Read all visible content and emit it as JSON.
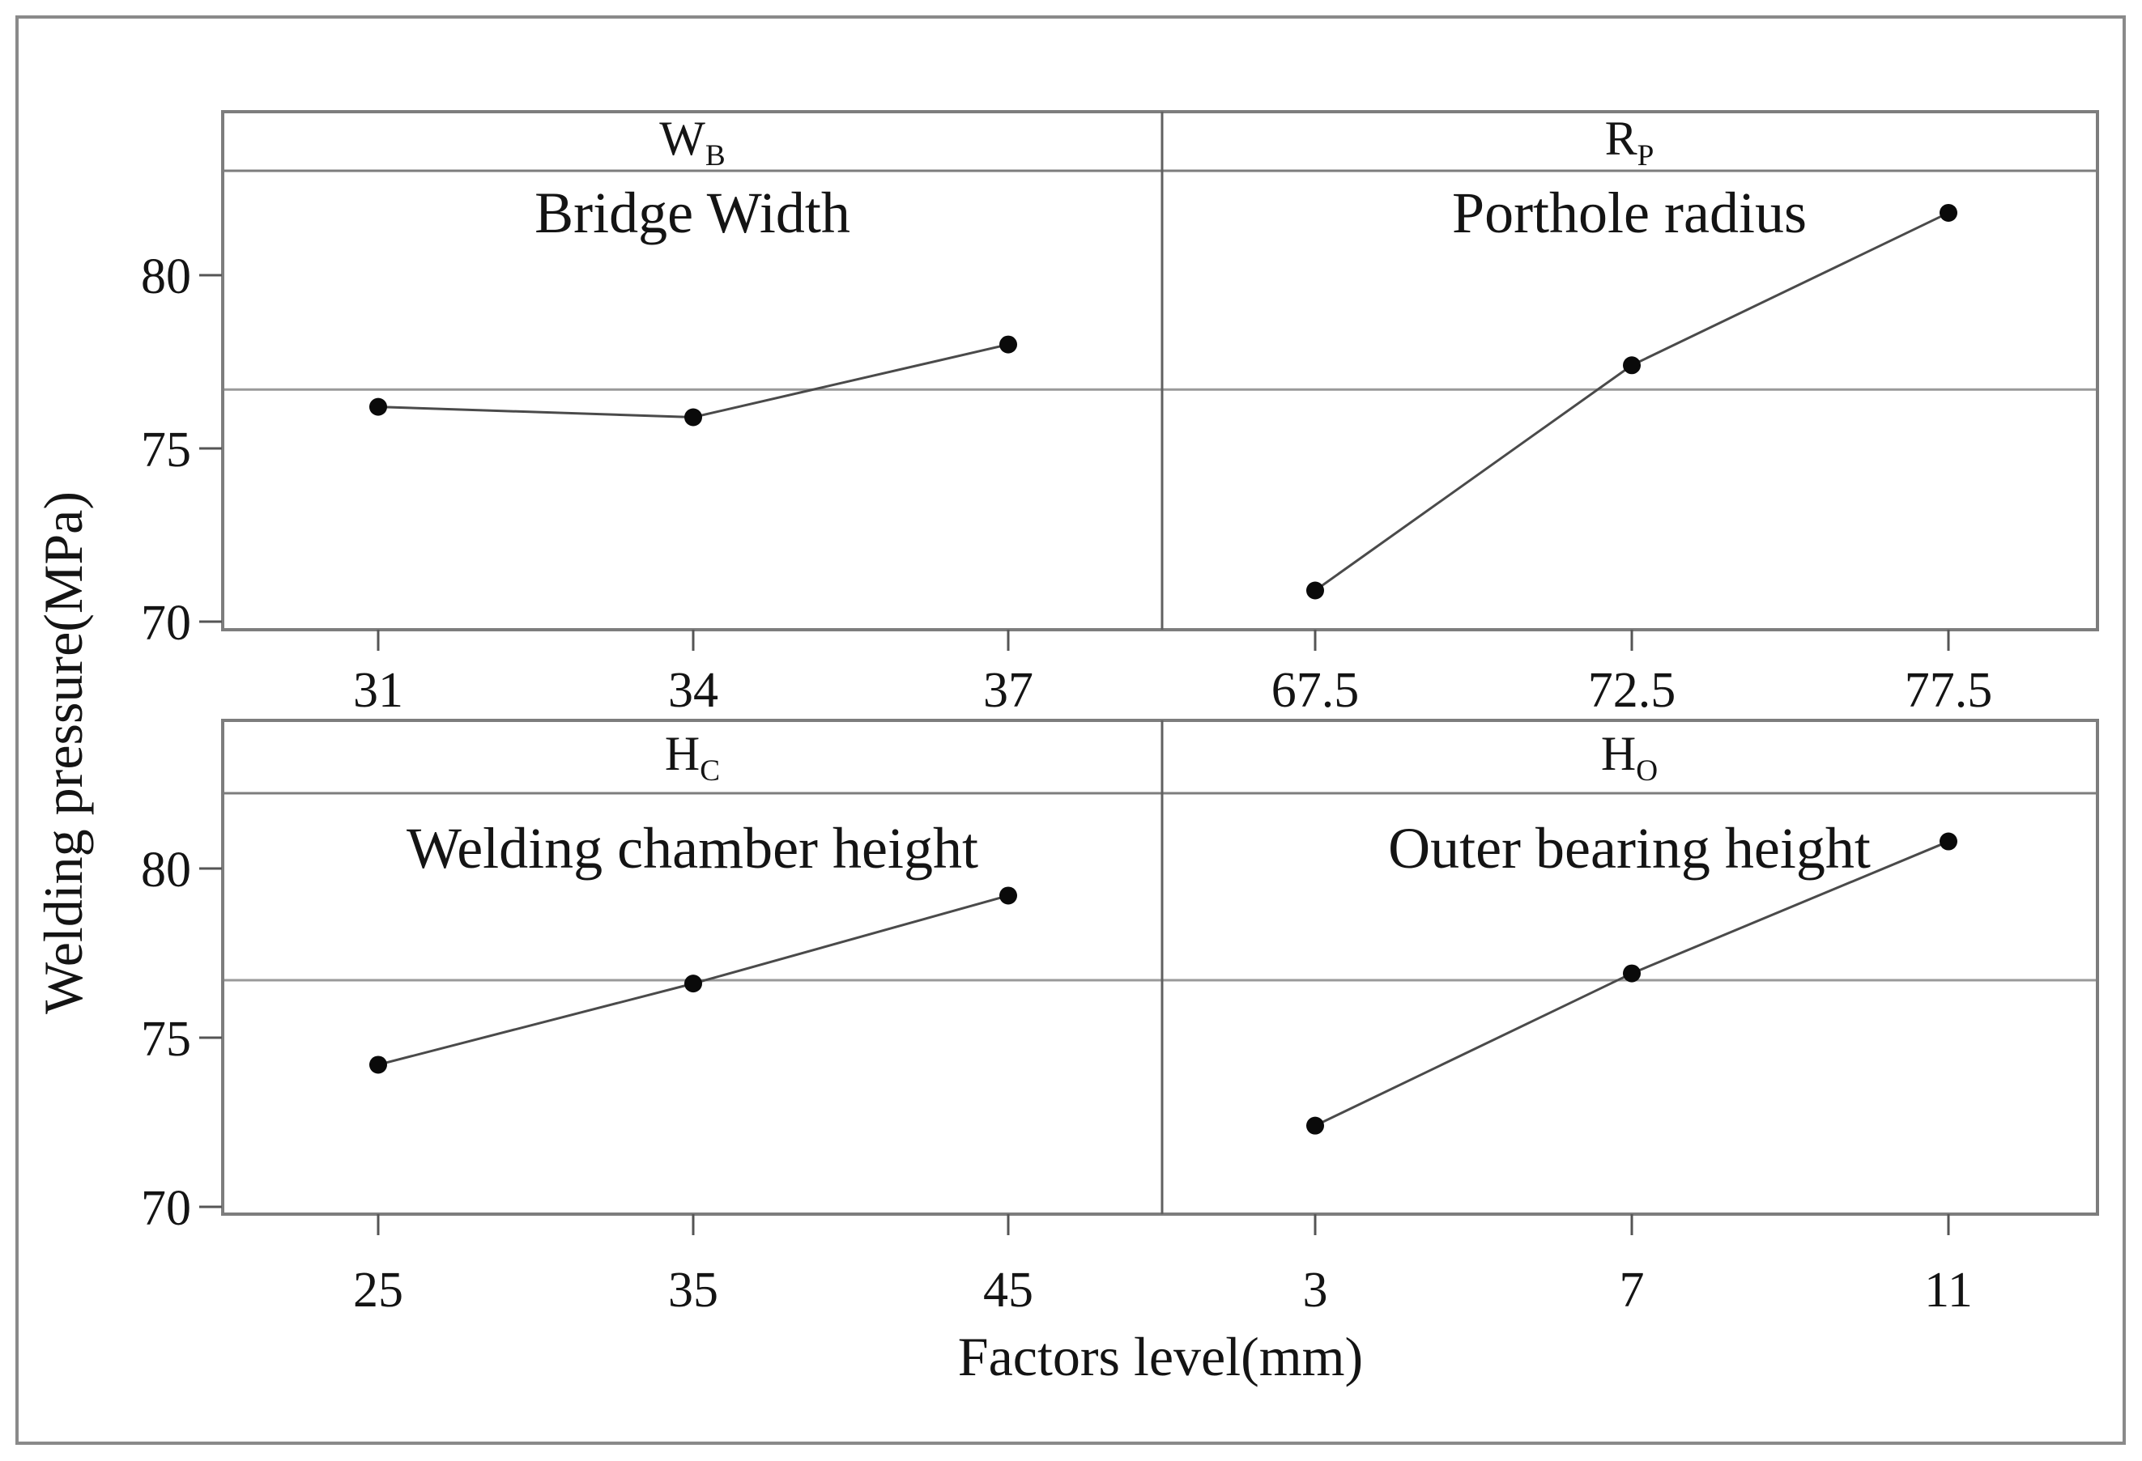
{
  "figure": {
    "ylabel": "Welding pressure(MPa)",
    "xlabel": "Factors level(mm)",
    "y_tick_labels": [
      "70",
      "75",
      "80"
    ],
    "y_tick_values": [
      70,
      75,
      80
    ],
    "grand_mean": 76.7,
    "colors": {
      "background": "#ffffff",
      "figure_border": "#8a8a8a",
      "panel_border": "#7d7d7d",
      "panel_divider": "#606060",
      "tick": "#555555",
      "mean_line": "#9a9a9a",
      "series_line": "#4a4a4a",
      "point": "#0a0a0a",
      "text": "#141414"
    }
  },
  "chart_data": [
    {
      "type": "line",
      "position": "top-left",
      "symbol_main": "W",
      "symbol_sub": "B",
      "subtitle": "Bridge Width",
      "x": [
        31,
        34,
        37
      ],
      "x_labels": [
        "31",
        "34",
        "37"
      ],
      "values": [
        76.2,
        75.9,
        78.0
      ],
      "mean_reference": 76.7,
      "ylim": [
        69.8,
        83.3
      ],
      "grid": "off",
      "ylabel_shared": "Welding pressure(MPa)"
    },
    {
      "type": "line",
      "position": "top-right",
      "symbol_main": "R",
      "symbol_sub": "P",
      "subtitle": "Porthole radius",
      "x": [
        67.5,
        72.5,
        77.5
      ],
      "x_labels": [
        "67.5",
        "72.5",
        "77.5"
      ],
      "values": [
        70.9,
        77.4,
        81.8
      ],
      "mean_reference": 76.7,
      "ylim": [
        69.8,
        83.3
      ],
      "grid": "off",
      "ylabel_shared": "Welding pressure(MPa)"
    },
    {
      "type": "line",
      "position": "bottom-left",
      "symbol_main": "H",
      "symbol_sub": "C",
      "subtitle": "Welding chamber height",
      "x": [
        25,
        35,
        45
      ],
      "x_labels": [
        "25",
        "35",
        "45"
      ],
      "values": [
        74.2,
        76.6,
        79.2
      ],
      "mean_reference": 76.7,
      "ylim": [
        69.8,
        82.2
      ],
      "grid": "off",
      "ylabel_shared": "Welding pressure(MPa)"
    },
    {
      "type": "line",
      "position": "bottom-right",
      "symbol_main": "H",
      "symbol_sub": "O",
      "subtitle": "Outer bearing height",
      "x": [
        3,
        7,
        11
      ],
      "x_labels": [
        "3",
        "7",
        "11"
      ],
      "values": [
        72.4,
        76.9,
        80.8
      ],
      "mean_reference": 76.7,
      "ylim": [
        69.8,
        82.2
      ],
      "grid": "off",
      "ylabel_shared": "Welding pressure(MPa)"
    }
  ]
}
